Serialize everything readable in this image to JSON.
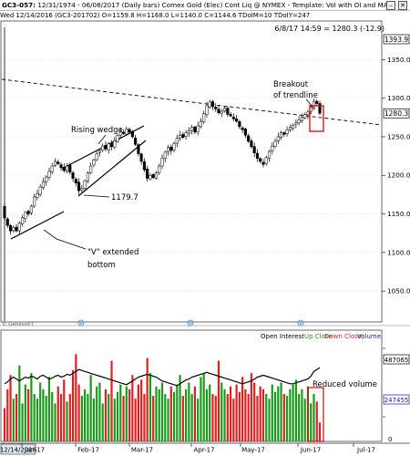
{
  "window": {
    "title_symbol": "GC3-057:",
    "title_rest": "12/31/1974 - 06/08/2017  (Daily bars)   Comex Gold (Elec) Cont Liq @ NYMEX  -  Template: Vol with OI and MA",
    "close_glyph": "✕",
    "min_glyph": "–"
  },
  "info_bar": {
    "date": "Wed",
    "bar_date": "12/14/2016 (GC3-201702)",
    "ohlc": "O=1159.8  H=1168.0  L=1140.0  C=1144.6  TDoIM=10  TDoIY=247"
  },
  "last_bar_readout": "6/8/17 14:59 = 1280.3 (-12.9)",
  "price_labels": {
    "top_box": "1393.9",
    "last_box": "1280.3",
    "ticks": [
      "1350.0",
      "1300.0",
      "1250.0",
      "1200.0",
      "1150.0",
      "1100.0",
      "1050.0"
    ]
  },
  "volume_labels": {
    "oi_box": "487065",
    "vol_box": "247455",
    "zero": "0"
  },
  "legend": {
    "open_interest": "Open Interest",
    "up_close": "Up Close",
    "down_close": "Down Close",
    "volume": "Volume",
    "colors": {
      "up": "#1a9a1a",
      "down": "#e02020",
      "volume": "#1a1aa0",
      "oi": "#000000"
    }
  },
  "annotations": {
    "breakout": [
      "Breakout",
      "of trendline"
    ],
    "rising_wedge": "Rising wedge",
    "low_value": "1179.7",
    "v_bottom": [
      "\"V\" extended",
      "bottom"
    ],
    "reduced_volume": "Reduced volume"
  },
  "x_axis": {
    "selected_date": "12/14/2016",
    "months": [
      "Jan-17",
      "Feb-17",
      "Mar-17",
      "Apr-17",
      "May-17",
      "Jun-17",
      "Jul-17"
    ]
  },
  "copyright": "© GenesisFT",
  "chart_data": [
    {
      "type": "candlestick",
      "ylim": [
        1010,
        1400
      ],
      "close": [
        1144.6,
        1135,
        1128,
        1132,
        1128,
        1138,
        1145,
        1152,
        1150,
        1160,
        1172,
        1176,
        1185,
        1192,
        1198,
        1205,
        1212,
        1218,
        1215,
        1210,
        1206,
        1212,
        1204,
        1196,
        1190,
        1180,
        1183,
        1193,
        1203,
        1212,
        1220,
        1228,
        1232,
        1238,
        1234,
        1241,
        1237,
        1245,
        1252,
        1257,
        1254,
        1260,
        1256,
        1250,
        1240,
        1228,
        1218,
        1207,
        1196,
        1200,
        1197,
        1203,
        1212,
        1222,
        1230,
        1236,
        1232,
        1241,
        1248,
        1252,
        1249,
        1255,
        1258,
        1262,
        1256,
        1264,
        1270,
        1280,
        1290,
        1295,
        1289,
        1286,
        1281,
        1283,
        1287,
        1279,
        1277,
        1273,
        1270,
        1263,
        1259,
        1252,
        1244,
        1237,
        1229,
        1222,
        1218,
        1214,
        1223,
        1231,
        1238,
        1244,
        1250,
        1255,
        1253,
        1259,
        1262,
        1265,
        1268,
        1272,
        1275,
        1279,
        1282,
        1288,
        1296,
        1293,
        1280.3
      ],
      "volume_ratio": [
        0.35,
        0.55,
        0.7,
        0.45,
        0.5,
        0.8,
        0.4,
        0.6,
        0.55,
        0.72,
        0.5,
        0.45,
        0.62,
        0.55,
        0.48,
        0.68,
        0.52,
        0.4,
        0.58,
        0.5,
        0.65,
        0.42,
        0.5,
        0.75,
        0.92,
        0.6,
        0.48,
        0.55,
        0.5,
        0.7,
        0.45,
        0.58,
        0.62,
        0.4,
        0.55,
        0.5,
        0.85,
        0.45,
        0.52,
        0.6,
        0.48,
        0.58,
        0.55,
        0.7,
        0.45,
        0.6,
        0.65,
        0.5,
        0.88,
        0.72,
        0.48,
        0.58,
        0.55,
        0.62,
        0.5,
        0.45,
        0.58,
        0.52,
        0.6,
        0.7,
        0.48,
        0.55,
        0.62,
        0.5,
        0.58,
        0.45,
        0.68,
        0.72,
        0.55,
        0.6,
        0.5,
        0.48,
        0.85,
        0.62,
        0.55,
        0.5,
        0.58,
        0.45,
        0.6,
        0.52,
        0.68,
        0.55,
        0.5,
        0.72,
        0.62,
        0.48,
        0.58,
        0.55,
        0.5,
        0.45,
        0.6,
        0.52,
        0.58,
        0.62,
        0.5,
        0.48,
        0.55,
        0.6,
        0.65,
        0.5,
        0.55,
        0.45,
        0.58,
        0.4,
        0.5,
        0.42,
        0.2
      ],
      "open_interest_ratio": [
        0.55,
        0.57,
        0.6,
        0.62,
        0.6,
        0.58,
        0.6,
        0.62,
        0.61,
        0.63,
        0.62,
        0.6,
        0.63,
        0.64,
        0.62,
        0.6,
        0.61,
        0.63,
        0.64,
        0.62,
        0.63,
        0.65,
        0.64,
        0.66,
        0.68,
        0.7,
        0.69,
        0.68,
        0.67,
        0.66,
        0.65,
        0.64,
        0.63,
        0.62,
        0.61,
        0.6,
        0.59,
        0.58,
        0.57,
        0.56,
        0.55,
        0.54,
        0.56,
        0.58,
        0.6,
        0.62,
        0.63,
        0.64,
        0.65,
        0.64,
        0.63,
        0.62,
        0.6,
        0.58,
        0.57,
        0.56,
        0.55,
        0.54,
        0.53,
        0.55,
        0.57,
        0.59,
        0.6,
        0.62,
        0.63,
        0.64,
        0.65,
        0.66,
        0.67,
        0.66,
        0.65,
        0.64,
        0.63,
        0.62,
        0.61,
        0.6,
        0.59,
        0.58,
        0.57,
        0.56,
        0.55,
        0.56,
        0.57,
        0.58,
        0.6,
        0.62,
        0.63,
        0.64,
        0.63,
        0.62,
        0.61,
        0.6,
        0.59,
        0.58,
        0.57,
        0.56,
        0.55,
        0.55,
        0.56,
        0.57,
        0.58,
        0.59,
        0.6,
        0.63,
        0.68,
        0.7,
        0.72
      ]
    }
  ]
}
